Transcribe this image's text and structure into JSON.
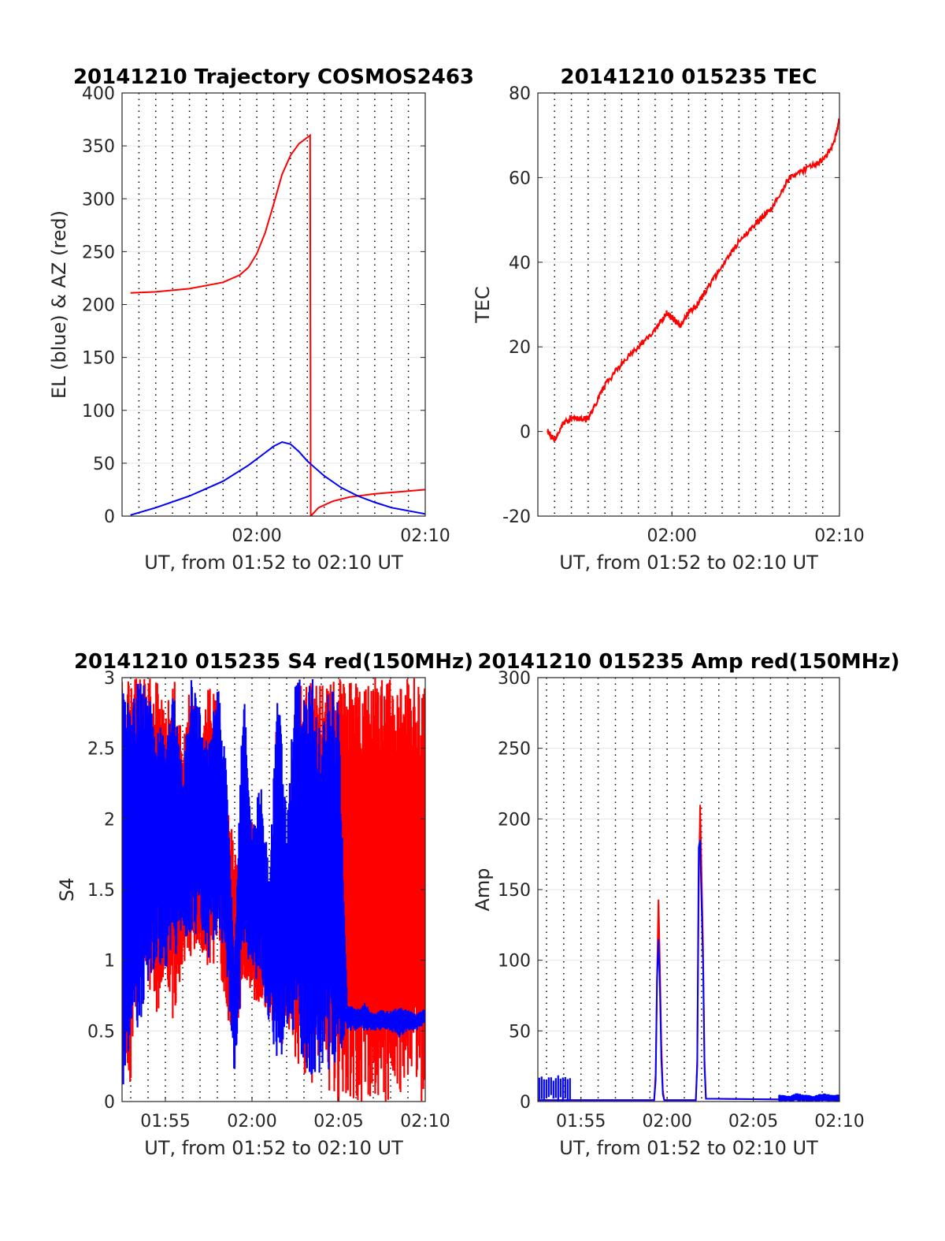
{
  "chart_data": [
    {
      "type": "line",
      "title": "20141210 Trajectory COSMOS2463",
      "xlabel": "UT, from 01:52 to 02:10 UT",
      "ylabel": "EL (blue) & AZ (red)",
      "xlim": [
        "01:52",
        "02:10"
      ],
      "ylim": [
        0,
        400
      ],
      "xticks": [
        {
          "t": "02:00",
          "label": "02:00"
        },
        {
          "t": "02:10",
          "label": "02:10"
        }
      ],
      "yticks": [
        0,
        50,
        100,
        150,
        200,
        250,
        300,
        350,
        400
      ],
      "grid": true,
      "series": [
        {
          "color": "#ff0000",
          "kind": "polyline",
          "t": [
            "01:52:30",
            "01:54:00",
            "01:56:00",
            "01:58:00",
            "01:59:00",
            "01:59:30",
            "02:00:00",
            "02:00:30",
            "02:01:00",
            "02:01:30",
            "02:02:00",
            "02:02:30",
            "02:03:00",
            "02:03:10",
            "02:03:12",
            "02:03:40",
            "02:04:30",
            "02:05:30",
            "02:07:00",
            "02:08:30",
            "02:10:00"
          ],
          "values": [
            211,
            212,
            215,
            221,
            228,
            235,
            248,
            268,
            295,
            323,
            341,
            352,
            358,
            360,
            0,
            8,
            14,
            18,
            21,
            23,
            25
          ]
        },
        {
          "color": "#0000ff",
          "kind": "polyline",
          "t": [
            "01:52:30",
            "01:54:00",
            "01:56:00",
            "01:58:00",
            "01:59:30",
            "02:00:30",
            "02:01:00",
            "02:01:30",
            "02:02:00",
            "02:02:30",
            "02:03:00",
            "02:04:00",
            "02:05:00",
            "02:06:00",
            "02:07:00",
            "02:08:00",
            "02:09:00",
            "02:10:00"
          ],
          "values": [
            1,
            8,
            19,
            33,
            48,
            60,
            66,
            70,
            68,
            61,
            52,
            38,
            27,
            19,
            13,
            8,
            5,
            2
          ]
        }
      ]
    },
    {
      "type": "line",
      "title": "20141210 015235 TEC",
      "xlabel": "UT, from 01:52 to 02:10 UT",
      "ylabel": "TEC",
      "xlim": [
        "01:52",
        "02:10"
      ],
      "ylim": [
        -20,
        80
      ],
      "xticks": [
        {
          "t": "02:00",
          "label": "02:00"
        },
        {
          "t": "02:10",
          "label": "02:10"
        }
      ],
      "yticks": [
        -20,
        0,
        20,
        40,
        60,
        80
      ],
      "grid": true,
      "series": [
        {
          "color": "#ff0000",
          "kind": "polyline",
          "noise": 0.7,
          "t": [
            "01:52:35",
            "01:53:00",
            "01:53:30",
            "01:54:00",
            "01:54:30",
            "01:55:00",
            "01:55:30",
            "01:56:00",
            "01:57:00",
            "01:58:00",
            "01:59:00",
            "01:59:40",
            "02:00:00",
            "02:00:30",
            "02:01:00",
            "02:01:30",
            "02:02:00",
            "02:03:00",
            "02:04:00",
            "02:05:00",
            "02:05:30",
            "02:06:00",
            "02:07:00",
            "02:08:00",
            "02:09:00",
            "02:09:40",
            "02:10:00"
          ],
          "values": [
            0,
            -2,
            2,
            3,
            3,
            3,
            7,
            11,
            16,
            20,
            24,
            28,
            27,
            25,
            28,
            30,
            33,
            39,
            45,
            49,
            51,
            53,
            60,
            62,
            64,
            68,
            74
          ]
        }
      ]
    },
    {
      "type": "line",
      "title": "20141210 015235 S4 red(150MHz)",
      "xlabel": "UT, from 01:52 to 02:10 UT",
      "ylabel": "S4",
      "xlim": [
        "01:52:30",
        "02:10"
      ],
      "ylim": [
        0,
        3
      ],
      "xticks": [
        {
          "t": "01:55",
          "label": "01:55"
        },
        {
          "t": "02:00",
          "label": "02:00"
        },
        {
          "t": "02:05",
          "label": "02:05"
        },
        {
          "t": "02:10",
          "label": "02:10"
        }
      ],
      "yticks": [
        0,
        0.5,
        1,
        1.5,
        2,
        2.5,
        3
      ],
      "grid": true,
      "series": [
        {
          "color": "#ff0000",
          "kind": "band",
          "t": [
            "01:52:30",
            "01:53:00",
            "01:53:30",
            "01:54:00",
            "01:54:30",
            "01:55:00",
            "01:55:30",
            "01:56:00",
            "01:56:30",
            "01:57:00",
            "01:57:30",
            "01:58:00",
            "01:58:30",
            "01:59:00",
            "01:59:30",
            "02:00:00",
            "02:00:30",
            "02:01:00",
            "02:01:30",
            "02:02:00",
            "02:02:30",
            "02:03:00",
            "02:03:30",
            "02:04:00",
            "02:04:30",
            "02:05:00",
            "02:05:30",
            "02:06:00",
            "02:06:30",
            "02:07:00",
            "02:07:30",
            "02:08:00",
            "02:08:30",
            "02:09:00",
            "02:09:30",
            "02:10:00"
          ],
          "low": [
            0.2,
            0.1,
            1.0,
            0.8,
            0.6,
            0.8,
            0.5,
            1.0,
            0.9,
            1.1,
            0.9,
            1.0,
            0.7,
            0.2,
            0.9,
            0.7,
            0.7,
            0.6,
            0.3,
            0.5,
            0.3,
            0.1,
            0.1,
            0.3,
            0.0,
            0.0,
            0.0,
            0.0,
            0.0,
            0.0,
            0.0,
            0.0,
            0.0,
            0.0,
            0.0,
            0.0
          ],
          "high": [
            3.0,
            3.0,
            3.0,
            3.0,
            3.0,
            2.8,
            3.0,
            2.6,
            3.0,
            2.4,
            3.0,
            3.0,
            2.2,
            1.8,
            1.5,
            2.0,
            1.6,
            1.3,
            3.0,
            1.5,
            3.0,
            3.0,
            3.0,
            3.0,
            3.0,
            3.0,
            3.0,
            3.0,
            3.0,
            3.0,
            3.0,
            3.0,
            3.0,
            3.0,
            3.0,
            3.0
          ]
        },
        {
          "color": "#0000ff",
          "kind": "band",
          "t": [
            "01:52:30",
            "01:53:00",
            "01:53:30",
            "01:54:00",
            "01:54:30",
            "01:55:00",
            "01:55:30",
            "01:56:00",
            "01:56:30",
            "01:57:00",
            "01:57:30",
            "01:58:00",
            "01:58:30",
            "01:59:00",
            "01:59:30",
            "02:00:00",
            "02:00:30",
            "02:01:00",
            "02:01:30",
            "02:02:00",
            "02:02:30",
            "02:03:00",
            "02:03:30",
            "02:04:00",
            "02:04:30",
            "02:05:00",
            "02:05:30",
            "02:06:00",
            "02:06:30",
            "02:07:00",
            "02:07:30",
            "02:08:00",
            "02:08:30",
            "02:09:00",
            "02:09:30",
            "02:10:00"
          ],
          "low": [
            0.1,
            0.2,
            0.5,
            0.8,
            1.0,
            0.9,
            1.0,
            1.2,
            1.1,
            1.2,
            1.0,
            1.2,
            1.0,
            0.15,
            1.0,
            0.8,
            0.9,
            0.5,
            0.2,
            0.5,
            0.4,
            0.3,
            0.1,
            0.2,
            0.2,
            0.3,
            0.5,
            0.5,
            0.5,
            0.5,
            0.5,
            0.5,
            0.45,
            0.5,
            0.5,
            0.55
          ],
          "high": [
            3.0,
            2.8,
            3.0,
            2.9,
            2.7,
            2.6,
            2.9,
            2.3,
            3.0,
            2.8,
            2.5,
            3.0,
            2.4,
            1.0,
            3.0,
            1.9,
            2.3,
            1.6,
            3.0,
            2.0,
            3.0,
            3.0,
            3.0,
            2.6,
            3.0,
            2.8,
            0.7,
            0.65,
            0.7,
            0.62,
            0.65,
            0.64,
            0.67,
            0.65,
            0.62,
            0.66
          ]
        }
      ]
    },
    {
      "type": "line",
      "title": "20141210 015235 Amp red(150MHz)",
      "xlabel": "UT, from 01:52 to 02:10 UT",
      "ylabel": "Amp",
      "xlim": [
        "01:52:30",
        "02:10"
      ],
      "ylim": [
        0,
        300
      ],
      "xticks": [
        {
          "t": "01:55",
          "label": "01:55"
        },
        {
          "t": "02:00",
          "label": "02:00"
        },
        {
          "t": "02:05",
          "label": "02:05"
        },
        {
          "t": "02:10",
          "label": "02:10"
        }
      ],
      "yticks": [
        0,
        50,
        100,
        150,
        200,
        250,
        300
      ],
      "grid": true,
      "series": [
        {
          "color": "#ff0000",
          "kind": "polyline",
          "t": [
            "01:52:30",
            "01:59:15",
            "01:59:20",
            "01:59:25",
            "01:59:30",
            "01:59:35",
            "01:59:40",
            "01:59:45",
            "01:59:50",
            "02:01:40",
            "02:01:45",
            "02:01:50",
            "02:01:55",
            "02:02:00",
            "02:02:05",
            "02:02:10",
            "02:02:15",
            "02:10:00"
          ],
          "values": [
            1,
            1,
            20,
            90,
            143,
            95,
            40,
            8,
            1,
            1,
            30,
            150,
            210,
            160,
            110,
            30,
            2,
            1
          ]
        },
        {
          "color": "#0000ff",
          "kind": "polyline",
          "t": [
            "01:52:30",
            "01:59:15",
            "01:59:20",
            "01:59:25",
            "01:59:30",
            "01:59:35",
            "01:59:40",
            "01:59:45",
            "01:59:50",
            "02:01:40",
            "02:01:45",
            "02:01:50",
            "02:01:55",
            "02:02:00",
            "02:02:05",
            "02:02:10",
            "02:02:15",
            "02:10:00"
          ],
          "values": [
            1,
            1,
            15,
            88,
            115,
            80,
            30,
            5,
            1,
            1,
            25,
            180,
            185,
            140,
            100,
            25,
            2,
            1
          ]
        },
        {
          "color": "#0000ff",
          "kind": "band",
          "t": [
            "01:52:35",
            "01:54:30"
          ],
          "low": [
            0,
            0
          ],
          "high": [
            18,
            19
          ]
        },
        {
          "color": "#0000ff",
          "kind": "band",
          "t": [
            "02:06:30",
            "02:07:00",
            "02:07:30",
            "02:08:00",
            "02:08:30",
            "02:09:00",
            "02:09:30",
            "02:10:00"
          ],
          "low": [
            0,
            0,
            0,
            0,
            0,
            0,
            0,
            0
          ],
          "high": [
            5,
            4,
            6,
            5,
            4,
            6,
            5,
            5
          ]
        }
      ]
    }
  ]
}
